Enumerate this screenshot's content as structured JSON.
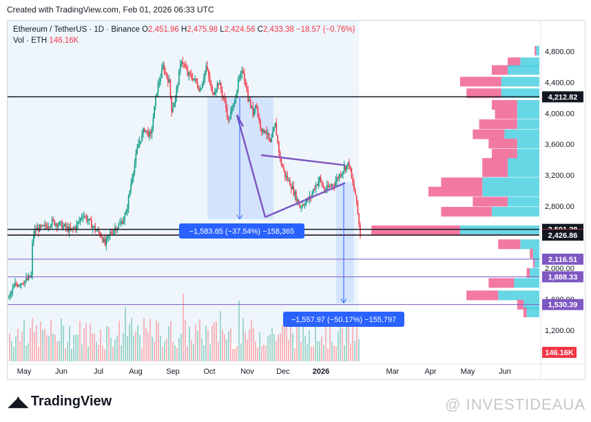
{
  "header": {
    "created_text": "Created with TradingView.com, Feb 01, 2026 06:33 UTC"
  },
  "legend": {
    "symbol": "Ethereum / TetherUS · 1D · Binance",
    "open_label": "O",
    "open": "2,451.96",
    "high_label": "H",
    "high": "2,475.98",
    "low_label": "L",
    "low": "2,424.56",
    "close_label": "C",
    "close": "2,433.38",
    "change": "−18.57 (−0.76%)",
    "vol_label": "Vol · ETH",
    "vol": "146.16K"
  },
  "footer": {
    "logo_text": "TradingView",
    "watermark": "@ INVESTIDEAUA"
  },
  "colors": {
    "up": "#089981",
    "down": "#f23645",
    "accent": "#2962ff",
    "violet": "#7e57c2",
    "pink": "#f06292",
    "cyan": "#4dd0e1"
  },
  "chart_data": {
    "type": "candlestick",
    "symbol": "ETH/USDT",
    "interval": "1D",
    "ylim": [
      1100,
      5000
    ],
    "x_tick_labels": [
      "May",
      "Jun",
      "Jul",
      "Aug",
      "Sep",
      "Oct",
      "Nov",
      "Dec",
      "2026",
      "Mar",
      "Apr",
      "May",
      "Jun"
    ],
    "y_tick_labels": [
      "4,800.00",
      "4,400.00",
      "4,000.00",
      "3,600.00",
      "3,200.00",
      "2,800.00",
      "2,000.00",
      "1,600.00",
      "1,200.00"
    ],
    "y_tick_values": [
      4800,
      4400,
      4000,
      3600,
      3200,
      2800,
      2000,
      1600,
      1200
    ],
    "price_path": [
      [
        0,
        1620
      ],
      [
        5,
        1780
      ],
      [
        10,
        1820
      ],
      [
        15,
        1850
      ],
      [
        18,
        1900
      ],
      [
        19,
        2300
      ],
      [
        20,
        2450
      ],
      [
        22,
        2500
      ],
      [
        28,
        2520
      ],
      [
        35,
        2600
      ],
      [
        42,
        2560
      ],
      [
        50,
        2480
      ],
      [
        55,
        2550
      ],
      [
        60,
        2700
      ],
      [
        65,
        2600
      ],
      [
        70,
        2500
      ],
      [
        75,
        2420
      ],
      [
        78,
        2300
      ],
      [
        82,
        2450
      ],
      [
        86,
        2520
      ],
      [
        90,
        2560
      ],
      [
        95,
        2700
      ],
      [
        100,
        3200
      ],
      [
        105,
        3600
      ],
      [
        110,
        3800
      ],
      [
        115,
        3700
      ],
      [
        120,
        4300
      ],
      [
        125,
        4600
      ],
      [
        130,
        4400
      ],
      [
        132,
        4050
      ],
      [
        135,
        4200
      ],
      [
        140,
        4700
      ],
      [
        145,
        4500
      ],
      [
        150,
        4450
      ],
      [
        155,
        4300
      ],
      [
        160,
        4600
      ],
      [
        165,
        4250
      ],
      [
        170,
        4400
      ],
      [
        175,
        4150
      ],
      [
        178,
        3900
      ],
      [
        182,
        4100
      ],
      [
        186,
        4400
      ],
      [
        190,
        4550
      ],
      [
        194,
        4200
      ],
      [
        198,
        4000
      ],
      [
        200,
        4150
      ],
      [
        203,
        3900
      ],
      [
        206,
        3750
      ],
      [
        208,
        3800
      ],
      [
        212,
        3600
      ],
      [
        216,
        3850
      ],
      [
        220,
        3400
      ],
      [
        224,
        3200
      ],
      [
        228,
        3100
      ],
      [
        232,
        2950
      ],
      [
        236,
        2800
      ],
      [
        240,
        2850
      ],
      [
        244,
        2900
      ],
      [
        248,
        3050
      ],
      [
        252,
        3150
      ],
      [
        256,
        3000
      ],
      [
        260,
        3050
      ],
      [
        264,
        3100
      ],
      [
        268,
        3200
      ],
      [
        272,
        3300
      ],
      [
        276,
        3350
      ],
      [
        278,
        3150
      ],
      [
        281,
        2950
      ],
      [
        283,
        2700
      ],
      [
        285,
        2433
      ]
    ],
    "volume_label": "146.16K",
    "horizontal_levels": [
      {
        "price": 4212.82,
        "label": "4,212.82",
        "style": "black"
      },
      {
        "price": 2501.28,
        "label": "2,501.28",
        "style": "black"
      },
      {
        "price": 2433.38,
        "label": "2,433.38",
        "style": "red"
      },
      {
        "price": 2426.86,
        "label": "2,426.86",
        "style": "black"
      },
      {
        "price": 2116.51,
        "label": "2,116.51",
        "style": "violet"
      },
      {
        "price": 1888.33,
        "label": "1,888.33",
        "style": "violet"
      },
      {
        "price": 1530.39,
        "label": "1,530.39",
        "style": "violet"
      }
    ],
    "measurements": [
      {
        "label": "−1,583.65 (−37.54%) −158,365",
        "from_price": 4218,
        "to_price": 2634
      },
      {
        "label": "−1,557.97 (−50.17%) −155,797",
        "from_price": 3108,
        "to_price": 1550
      }
    ],
    "volume_profile": [
      {
        "price": 4800,
        "up": 0.02,
        "down": 0.01
      },
      {
        "price": 4650,
        "up": 0.12,
        "down": 0.08
      },
      {
        "price": 4550,
        "up": 0.2,
        "down": 0.1
      },
      {
        "price": 4400,
        "up": 0.24,
        "down": 0.26
      },
      {
        "price": 4250,
        "up": 0.24,
        "down": 0.22
      },
      {
        "price": 4100,
        "up": 0.14,
        "down": 0.16
      },
      {
        "price": 3980,
        "up": 0.14,
        "down": 0.14
      },
      {
        "price": 3850,
        "up": 0.14,
        "down": 0.24
      },
      {
        "price": 3720,
        "up": 0.22,
        "down": 0.2
      },
      {
        "price": 3600,
        "up": 0.14,
        "down": 0.18
      },
      {
        "price": 3470,
        "up": 0.14,
        "down": 0.16
      },
      {
        "price": 3350,
        "up": 0.2,
        "down": 0.16
      },
      {
        "price": 3230,
        "up": 0.2,
        "down": 0.16
      },
      {
        "price": 3100,
        "up": 0.36,
        "down": 0.26
      },
      {
        "price": 2980,
        "up": 0.36,
        "down": 0.34
      },
      {
        "price": 2850,
        "up": 0.2,
        "down": 0.22
      },
      {
        "price": 2720,
        "up": 0.3,
        "down": 0.32
      },
      {
        "price": 2480,
        "up": 0.5,
        "down": 0.56
      },
      {
        "price": 2300,
        "up": 0.12,
        "down": 0.14
      },
      {
        "price": 2180,
        "up": 0.04,
        "down": 0.02
      },
      {
        "price": 2060,
        "up": 0.03,
        "down": 0.01
      },
      {
        "price": 1930,
        "up": 0.06,
        "down": 0.02
      },
      {
        "price": 1800,
        "up": 0.16,
        "down": 0.16
      },
      {
        "price": 1640,
        "up": 0.26,
        "down": 0.2
      },
      {
        "price": 1520,
        "up": 0.1,
        "down": 0.04
      },
      {
        "price": 1420,
        "up": 0.08,
        "down": 0.02
      }
    ]
  }
}
